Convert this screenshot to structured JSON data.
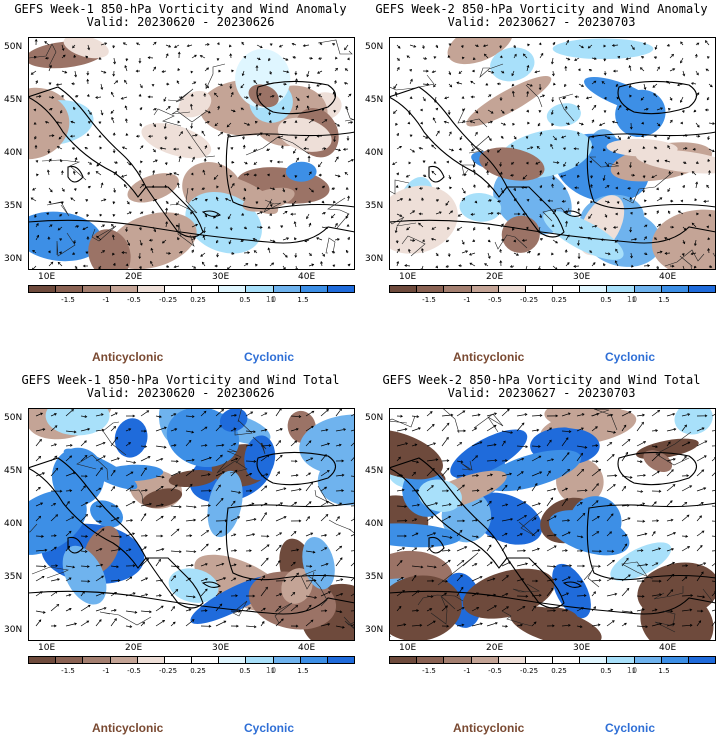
{
  "colors": {
    "anticyclonic_dark": "#6e4a3c",
    "anticyclonic_mid": "#9b7366",
    "anticyclonic_light": "#c4a496",
    "anticyclonic_pale": "#eedfd8",
    "neutral": "#ffffff",
    "cyclonic_pale": "#dff6ff",
    "cyclonic_light": "#a8e0fa",
    "cyclonic_mid": "#6fb3ee",
    "cyclonic_strong": "#3d8fe6",
    "cyclonic_dark": "#1f6bdb",
    "anticyclonic_text": "#7a4a32",
    "cyclonic_text": "#2f6fd6"
  },
  "colorbar": {
    "segment_colors": [
      "#6e4a3c",
      "#8a6253",
      "#a47f70",
      "#c4a496",
      "#eedfd8",
      "#ffffff",
      "#ffffff",
      "#dff6ff",
      "#a8e0fa",
      "#6fb3ee",
      "#3d8fe6",
      "#1f6bdb"
    ],
    "tick_labels": [
      "-1.5",
      "-1",
      "-0.5",
      "-0.25",
      "0.25",
      "0.5",
      "1",
      "1.5"
    ],
    "multiplier": "10"
  },
  "axes": {
    "lat_labels": [
      "50N",
      "45N",
      "40N",
      "35N",
      "30N"
    ],
    "lon_labels": [
      "10E",
      "20E",
      "30E",
      "40E"
    ]
  },
  "legend": {
    "anticyclonic": "Anticyclonic",
    "cyclonic": "Cyclonic"
  },
  "panels": [
    {
      "title": "GEFS Week-1 850-hPa Vorticity and Wind Anomaly",
      "valid": "Valid: 20230620 - 20230626",
      "kind": "anomaly",
      "seed": 11
    },
    {
      "title": "GEFS Week-2 850-hPa Vorticity and Wind Anomaly",
      "valid": "Valid: 20230627 - 20230703",
      "kind": "anomaly",
      "seed": 27
    },
    {
      "title": "GEFS Week-1 850-hPa Vorticity and Wind Total",
      "valid": "Valid: 20230620 - 20230626",
      "kind": "total",
      "seed": 43
    },
    {
      "title": "GEFS Week-2 850-hPa Vorticity and Wind Total",
      "valid": "Valid: 20230627 - 20230703",
      "kind": "total",
      "seed": 59
    }
  ]
}
